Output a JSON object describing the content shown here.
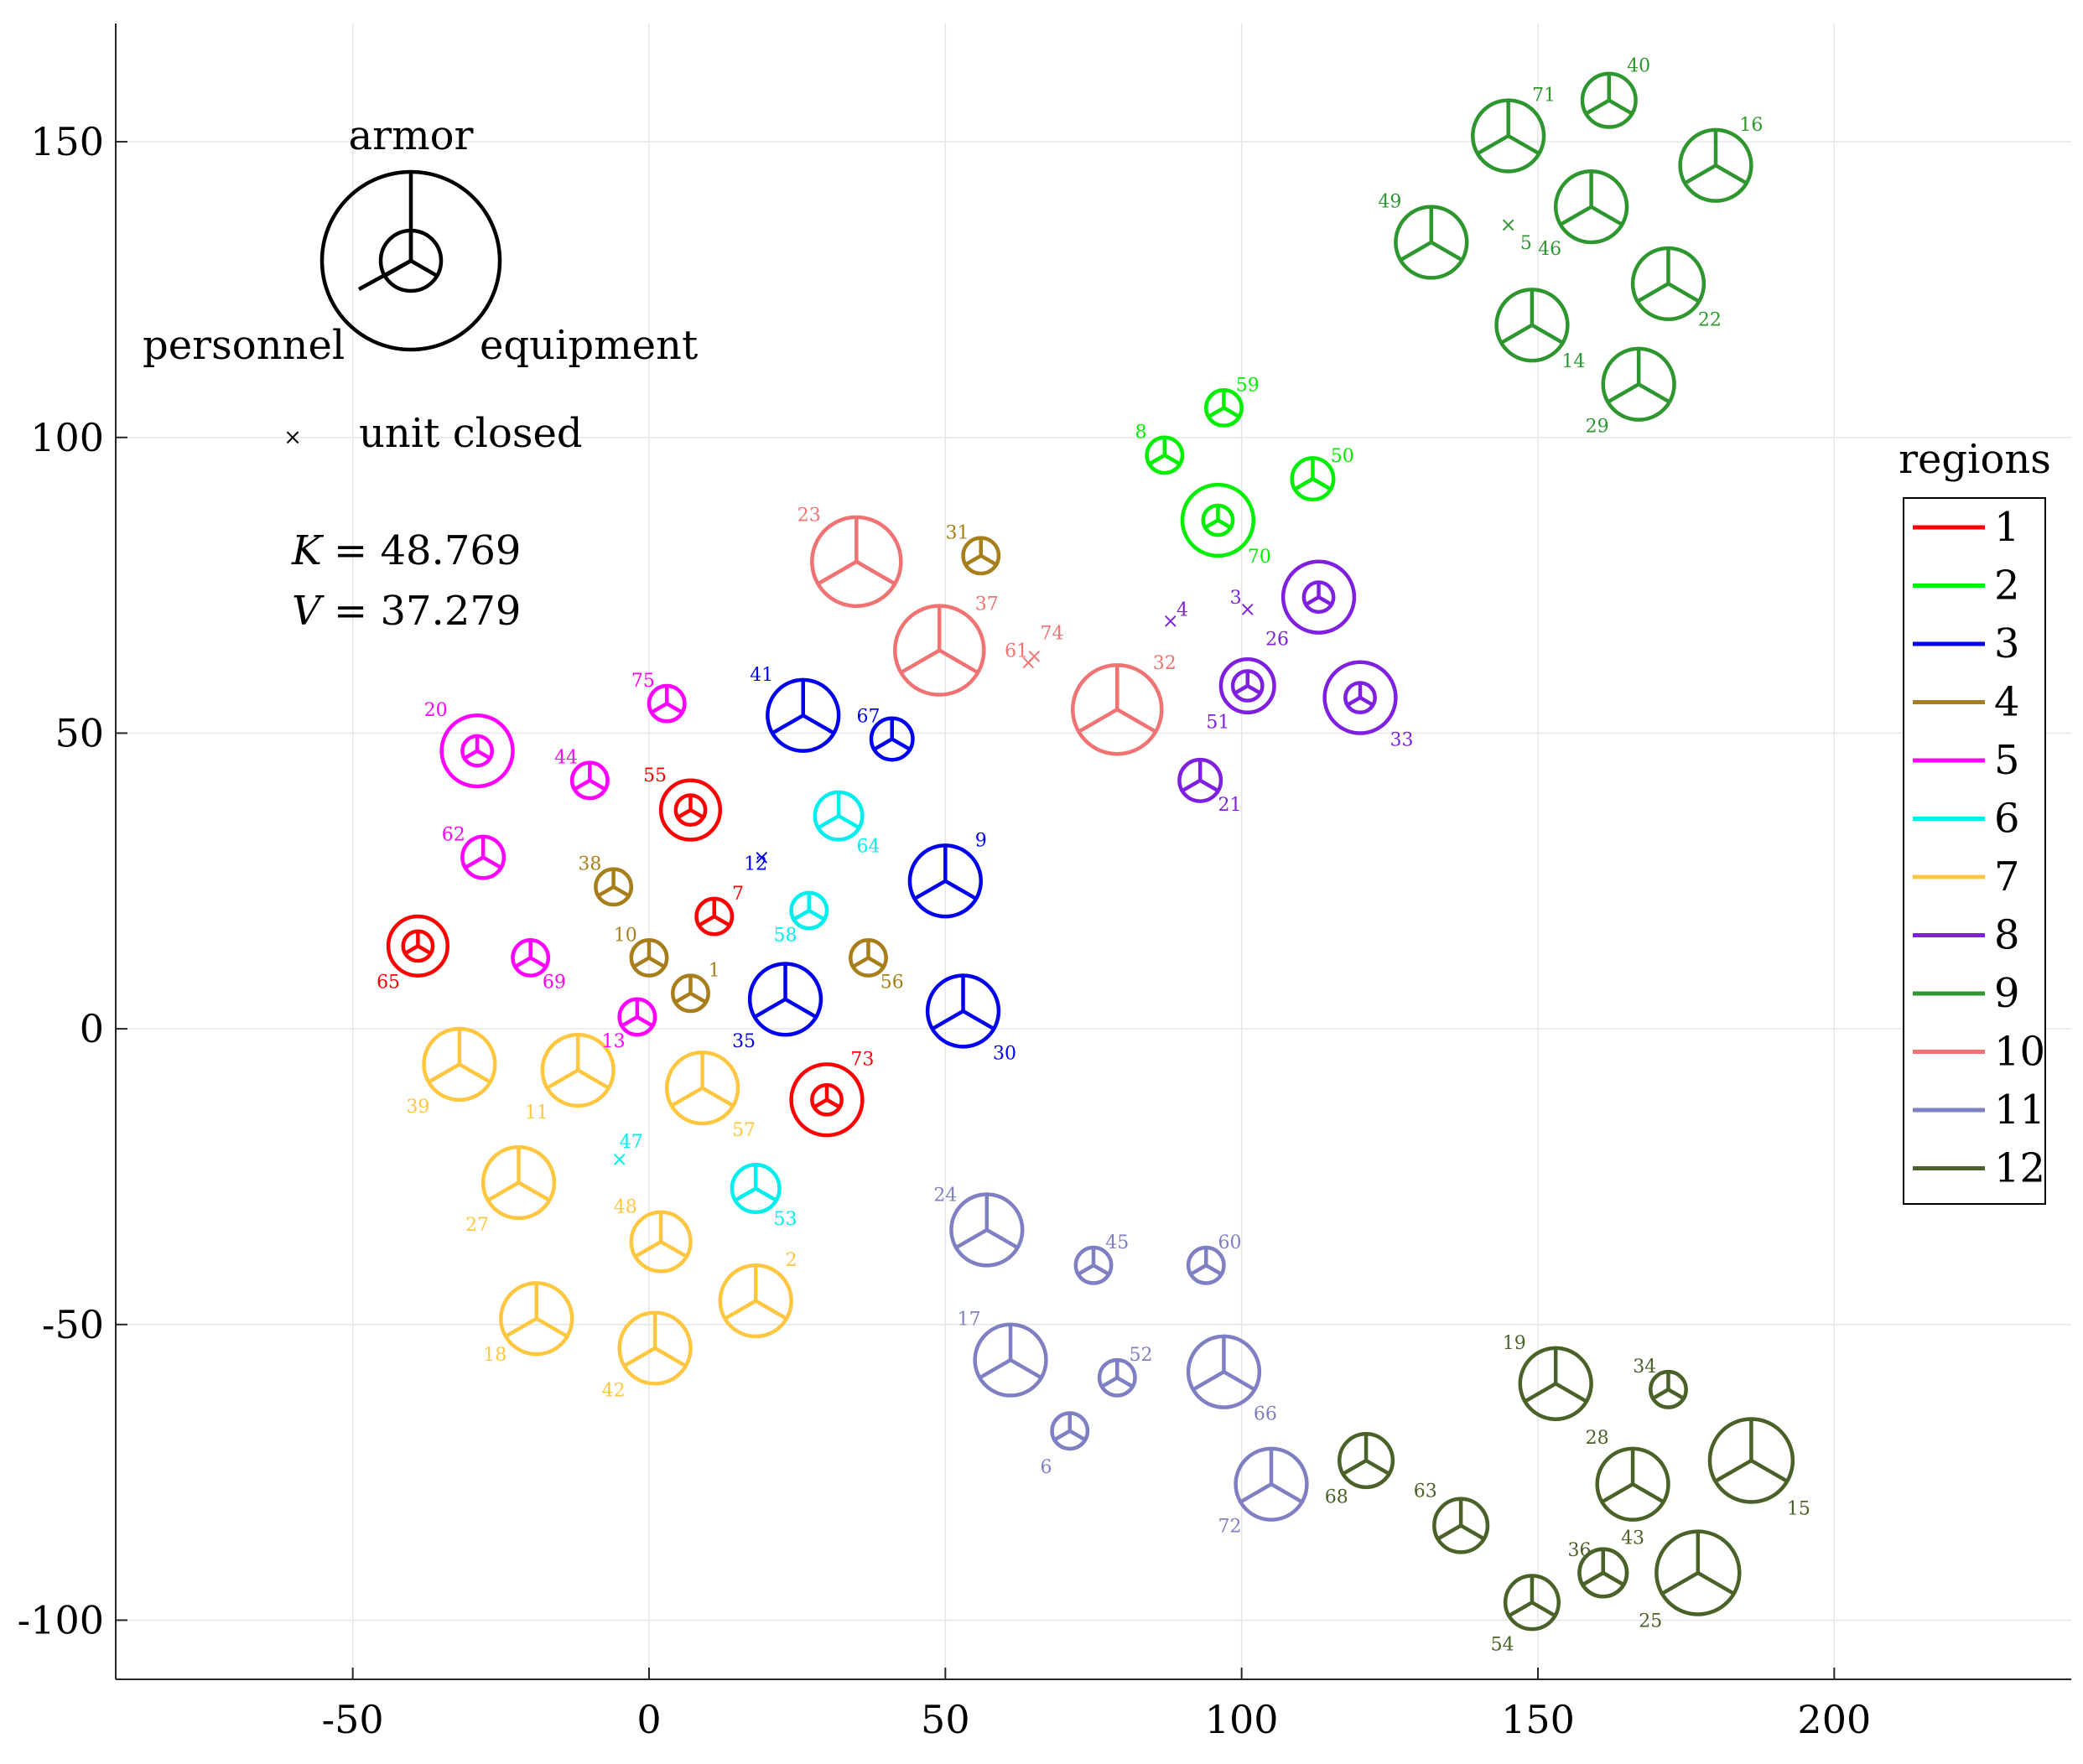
{
  "chart_data": {
    "type": "scatter",
    "title": "",
    "xlabel": "",
    "ylabel": "",
    "xlim": [
      -90,
      240
    ],
    "ylim": [
      -110,
      170
    ],
    "grid": true,
    "xticks": [
      -50,
      0,
      50,
      100,
      150,
      200
    ],
    "xtick_labels": [
      "-50",
      "0",
      "50",
      "100",
      "150",
      "200"
    ],
    "yticks": [
      150,
      100,
      50,
      0,
      -50,
      -100
    ],
    "ytick_labels": [
      "150",
      "100",
      "50",
      "0",
      "-50",
      "-100"
    ],
    "legend": {
      "title": "regions",
      "placement": "right",
      "entries": [
        "1",
        "2",
        "3",
        "4",
        "5",
        "6",
        "7",
        "8",
        "9",
        "10",
        "11",
        "12"
      ]
    },
    "region_colors": {
      "1": "#ff0000",
      "2": "#00ee00",
      "3": "#0000ee",
      "4": "#a87e1a",
      "5": "#ff00ff",
      "6": "#00eeee",
      "7": "#ffc640",
      "8": "#7f1fe0",
      "9": "#2e962e",
      "10": "#f07272",
      "11": "#7f7fc4",
      "12": "#4a6128"
    },
    "key": {
      "armor_label": "armor",
      "personnel_label": "personnel",
      "equipment_label": "equipment",
      "closed_marker": "×",
      "closed_label": "unit closed",
      "k_label": "K",
      "k_value": "= 48.769",
      "v_label": "V",
      "v_value": "= 37.279"
    },
    "units": [
      {
        "id": "1",
        "region": 4,
        "x": 7,
        "y": 6,
        "outer": 3,
        "inner": 0,
        "closed": false,
        "lx": 11,
        "ly": 10
      },
      {
        "id": "2",
        "region": 7,
        "x": 18,
        "y": -46,
        "outer": 6,
        "inner": 0,
        "closed": false,
        "lx": 24,
        "ly": -39
      },
      {
        "id": "3",
        "region": 8,
        "x": 101,
        "y": 71,
        "outer": 0,
        "inner": 0,
        "closed": true,
        "lx": 99,
        "ly": 73
      },
      {
        "id": "4",
        "region": 8,
        "x": 88,
        "y": 69,
        "outer": 0,
        "inner": 0,
        "closed": true,
        "lx": 90,
        "ly": 71
      },
      {
        "id": "5",
        "region": 9,
        "x": 145,
        "y": 136,
        "outer": 0,
        "inner": 0,
        "closed": true,
        "lx": 148,
        "ly": 133
      },
      {
        "id": "6",
        "region": 11,
        "x": 71,
        "y": -68,
        "outer": 3,
        "inner": 0,
        "closed": false,
        "lx": 67,
        "ly": -74
      },
      {
        "id": "7",
        "region": 1,
        "x": 11,
        "y": 19,
        "outer": 3,
        "inner": 0,
        "closed": false,
        "lx": 15,
        "ly": 23
      },
      {
        "id": "8",
        "region": 2,
        "x": 87,
        "y": 97,
        "outer": 3,
        "inner": 0,
        "closed": false,
        "lx": 83,
        "ly": 101
      },
      {
        "id": "9",
        "region": 3,
        "x": 50,
        "y": 25,
        "outer": 6,
        "inner": 0,
        "closed": false,
        "lx": 56,
        "ly": 32
      },
      {
        "id": "10",
        "region": 4,
        "x": 0,
        "y": 12,
        "outer": 3,
        "inner": 0,
        "closed": false,
        "lx": -4,
        "ly": 16
      },
      {
        "id": "11",
        "region": 7,
        "x": -12,
        "y": -7,
        "outer": 6,
        "inner": 0,
        "closed": false,
        "lx": -19,
        "ly": -14
      },
      {
        "id": "12",
        "region": 3,
        "x": 19,
        "y": 29,
        "outer": 0,
        "inner": 0,
        "closed": true,
        "lx": 18,
        "ly": 28
      },
      {
        "id": "13",
        "region": 5,
        "x": -2,
        "y": 2,
        "outer": 3,
        "inner": 0,
        "closed": false,
        "lx": -6,
        "ly": -2
      },
      {
        "id": "14",
        "region": 9,
        "x": 149,
        "y": 119,
        "outer": 6,
        "inner": 0,
        "closed": false,
        "lx": 156,
        "ly": 113
      },
      {
        "id": "15",
        "region": 12,
        "x": 186,
        "y": -73,
        "outer": 7,
        "inner": 0,
        "closed": false,
        "lx": 194,
        "ly": -81
      },
      {
        "id": "16",
        "region": 9,
        "x": 180,
        "y": 146,
        "outer": 6,
        "inner": 0,
        "closed": false,
        "lx": 186,
        "ly": 153
      },
      {
        "id": "17",
        "region": 11,
        "x": 61,
        "y": -56,
        "outer": 6,
        "inner": 0,
        "closed": false,
        "lx": 54,
        "ly": -49
      },
      {
        "id": "18",
        "region": 7,
        "x": -19,
        "y": -49,
        "outer": 6,
        "inner": 0,
        "closed": false,
        "lx": -26,
        "ly": -55
      },
      {
        "id": "19",
        "region": 12,
        "x": 153,
        "y": -60,
        "outer": 6,
        "inner": 0,
        "closed": false,
        "lx": 146,
        "ly": -53
      },
      {
        "id": "20",
        "region": 5,
        "x": -29,
        "y": 47,
        "outer": 6,
        "inner": 2.5,
        "closed": false,
        "lx": -36,
        "ly": 54
      },
      {
        "id": "21",
        "region": 8,
        "x": 93,
        "y": 42,
        "outer": 3.5,
        "inner": 0,
        "closed": false,
        "lx": 98,
        "ly": 38
      },
      {
        "id": "22",
        "region": 9,
        "x": 172,
        "y": 126,
        "outer": 6,
        "inner": 0,
        "closed": false,
        "lx": 179,
        "ly": 120
      },
      {
        "id": "23",
        "region": 10,
        "x": 35,
        "y": 79,
        "outer": 7.5,
        "inner": 0,
        "closed": false,
        "lx": 27,
        "ly": 87
      },
      {
        "id": "24",
        "region": 11,
        "x": 57,
        "y": -34,
        "outer": 6,
        "inner": 0,
        "closed": false,
        "lx": 50,
        "ly": -28
      },
      {
        "id": "25",
        "region": 12,
        "x": 177,
        "y": -92,
        "outer": 7,
        "inner": 0,
        "closed": false,
        "lx": 169,
        "ly": -100
      },
      {
        "id": "26",
        "region": 8,
        "x": 113,
        "y": 73,
        "outer": 6,
        "inner": 2.5,
        "closed": false,
        "lx": 106,
        "ly": 66
      },
      {
        "id": "27",
        "region": 7,
        "x": -22,
        "y": -26,
        "outer": 6,
        "inner": 0,
        "closed": false,
        "lx": -29,
        "ly": -33
      },
      {
        "id": "28",
        "region": 12,
        "x": 166,
        "y": -77,
        "outer": 6,
        "inner": 0,
        "closed": false,
        "lx": 160,
        "ly": -69
      },
      {
        "id": "29",
        "region": 9,
        "x": 167,
        "y": 109,
        "outer": 6,
        "inner": 0,
        "closed": false,
        "lx": 160,
        "ly": 102
      },
      {
        "id": "30",
        "region": 3,
        "x": 53,
        "y": 3,
        "outer": 6,
        "inner": 0,
        "closed": false,
        "lx": 60,
        "ly": -4
      },
      {
        "id": "31",
        "region": 4,
        "x": 56,
        "y": 80,
        "outer": 3,
        "inner": 0,
        "closed": false,
        "lx": 52,
        "ly": 84
      },
      {
        "id": "32",
        "region": 10,
        "x": 79,
        "y": 54,
        "outer": 7.5,
        "inner": 0,
        "closed": false,
        "lx": 87,
        "ly": 62
      },
      {
        "id": "33",
        "region": 8,
        "x": 120,
        "y": 56,
        "outer": 6,
        "inner": 2.5,
        "closed": false,
        "lx": 127,
        "ly": 49
      },
      {
        "id": "34",
        "region": 12,
        "x": 172,
        "y": -61,
        "outer": 3,
        "inner": 0,
        "closed": false,
        "lx": 168,
        "ly": -57
      },
      {
        "id": "35",
        "region": 3,
        "x": 23,
        "y": 5,
        "outer": 6,
        "inner": 0,
        "closed": false,
        "lx": 16,
        "ly": -2
      },
      {
        "id": "36",
        "region": 12,
        "x": 161,
        "y": -92,
        "outer": 4,
        "inner": 0,
        "closed": false,
        "lx": 157,
        "ly": -88
      },
      {
        "id": "37",
        "region": 10,
        "x": 49,
        "y": 64,
        "outer": 7.5,
        "inner": 0,
        "closed": false,
        "lx": 57,
        "ly": 72
      },
      {
        "id": "38",
        "region": 4,
        "x": -6,
        "y": 24,
        "outer": 3,
        "inner": 0,
        "closed": false,
        "lx": -10,
        "ly": 28
      },
      {
        "id": "39",
        "region": 7,
        "x": -32,
        "y": -6,
        "outer": 6,
        "inner": 0,
        "closed": false,
        "lx": -39,
        "ly": -13
      },
      {
        "id": "40",
        "region": 9,
        "x": 162,
        "y": 157,
        "outer": 4.5,
        "inner": 0,
        "closed": false,
        "lx": 167,
        "ly": 163
      },
      {
        "id": "41",
        "region": 3,
        "x": 26,
        "y": 53,
        "outer": 6,
        "inner": 0,
        "closed": false,
        "lx": 19,
        "ly": 60
      },
      {
        "id": "42",
        "region": 7,
        "x": 1,
        "y": -54,
        "outer": 6,
        "inner": 0,
        "closed": false,
        "lx": -6,
        "ly": -61
      },
      {
        "id": "43",
        "region": 12,
        "x": 161,
        "y": -92,
        "outer": 4,
        "inner": 0,
        "closed": false,
        "lx": 166,
        "ly": -86
      },
      {
        "id": "44",
        "region": 5,
        "x": -10,
        "y": 42,
        "outer": 3,
        "inner": 0,
        "closed": false,
        "lx": -14,
        "ly": 46
      },
      {
        "id": "45",
        "region": 11,
        "x": 75,
        "y": -40,
        "outer": 3,
        "inner": 0,
        "closed": false,
        "lx": 79,
        "ly": -36
      },
      {
        "id": "46",
        "region": 9,
        "x": 159,
        "y": 139,
        "outer": 6,
        "inner": 0,
        "closed": false,
        "lx": 152,
        "ly": 132
      },
      {
        "id": "47",
        "region": 6,
        "x": -5,
        "y": -22,
        "outer": 0,
        "inner": 0,
        "closed": true,
        "lx": -3,
        "ly": -19
      },
      {
        "id": "48",
        "region": 7,
        "x": 2,
        "y": -36,
        "outer": 5,
        "inner": 0,
        "closed": false,
        "lx": -4,
        "ly": -30
      },
      {
        "id": "49",
        "region": 9,
        "x": 132,
        "y": 133,
        "outer": 6,
        "inner": 0,
        "closed": false,
        "lx": 125,
        "ly": 140
      },
      {
        "id": "50",
        "region": 2,
        "x": 112,
        "y": 93,
        "outer": 3.5,
        "inner": 0,
        "closed": false,
        "lx": 117,
        "ly": 97
      },
      {
        "id": "51",
        "region": 8,
        "x": 101,
        "y": 58,
        "outer": 4.5,
        "inner": 2.5,
        "closed": false,
        "lx": 96,
        "ly": 52
      },
      {
        "id": "52",
        "region": 11,
        "x": 79,
        "y": -59,
        "outer": 3,
        "inner": 0,
        "closed": false,
        "lx": 83,
        "ly": -55
      },
      {
        "id": "53",
        "region": 6,
        "x": 18,
        "y": -27,
        "outer": 4,
        "inner": 0,
        "closed": false,
        "lx": 23,
        "ly": -32
      },
      {
        "id": "54",
        "region": 12,
        "x": 149,
        "y": -97,
        "outer": 4.5,
        "inner": 0,
        "closed": false,
        "lx": 144,
        "ly": -104
      },
      {
        "id": "55",
        "region": 1,
        "x": 7,
        "y": 37,
        "outer": 5,
        "inner": 2.5,
        "closed": false,
        "lx": 1,
        "ly": 43
      },
      {
        "id": "56",
        "region": 4,
        "x": 37,
        "y": 12,
        "outer": 3,
        "inner": 0,
        "closed": false,
        "lx": 41,
        "ly": 8
      },
      {
        "id": "57",
        "region": 7,
        "x": 9,
        "y": -10,
        "outer": 6,
        "inner": 0,
        "closed": false,
        "lx": 16,
        "ly": -17
      },
      {
        "id": "58",
        "region": 6,
        "x": 27,
        "y": 20,
        "outer": 3,
        "inner": 0,
        "closed": false,
        "lx": 23,
        "ly": 16
      },
      {
        "id": "59",
        "region": 2,
        "x": 97,
        "y": 105,
        "outer": 3,
        "inner": 0,
        "closed": false,
        "lx": 101,
        "ly": 109
      },
      {
        "id": "60",
        "region": 11,
        "x": 94,
        "y": -40,
        "outer": 3,
        "inner": 0,
        "closed": false,
        "lx": 98,
        "ly": -36
      },
      {
        "id": "61",
        "region": 10,
        "x": 64,
        "y": 62,
        "outer": 0,
        "inner": 0,
        "closed": true,
        "lx": 62,
        "ly": 64
      },
      {
        "id": "62",
        "region": 5,
        "x": -28,
        "y": 29,
        "outer": 3.5,
        "inner": 0,
        "closed": false,
        "lx": -33,
        "ly": 33
      },
      {
        "id": "63",
        "region": 12,
        "x": 137,
        "y": -84,
        "outer": 4.5,
        "inner": 0,
        "closed": false,
        "lx": 131,
        "ly": -78
      },
      {
        "id": "64",
        "region": 6,
        "x": 32,
        "y": 36,
        "outer": 4,
        "inner": 0,
        "closed": false,
        "lx": 37,
        "ly": 31
      },
      {
        "id": "65",
        "region": 1,
        "x": -39,
        "y": 14,
        "outer": 5,
        "inner": 2.5,
        "closed": false,
        "lx": -44,
        "ly": 8
      },
      {
        "id": "66",
        "region": 11,
        "x": 97,
        "y": -58,
        "outer": 6,
        "inner": 0,
        "closed": false,
        "lx": 104,
        "ly": -65
      },
      {
        "id": "67",
        "region": 3,
        "x": 41,
        "y": 49,
        "outer": 3.5,
        "inner": 0,
        "closed": false,
        "lx": 37,
        "ly": 53
      },
      {
        "id": "68",
        "region": 12,
        "x": 121,
        "y": -73,
        "outer": 4.5,
        "inner": 0,
        "closed": false,
        "lx": 116,
        "ly": -79
      },
      {
        "id": "69",
        "region": 5,
        "x": -20,
        "y": 12,
        "outer": 3,
        "inner": 0,
        "closed": false,
        "lx": -16,
        "ly": 8
      },
      {
        "id": "70",
        "region": 2,
        "x": 96,
        "y": 86,
        "outer": 6,
        "inner": 2.5,
        "closed": false,
        "lx": 103,
        "ly": 80
      },
      {
        "id": "71",
        "region": 9,
        "x": 145,
        "y": 151,
        "outer": 6,
        "inner": 0,
        "closed": false,
        "lx": 151,
        "ly": 158
      },
      {
        "id": "72",
        "region": 11,
        "x": 105,
        "y": -77,
        "outer": 6,
        "inner": 0,
        "closed": false,
        "lx": 98,
        "ly": -84
      },
      {
        "id": "73",
        "region": 1,
        "x": 30,
        "y": -12,
        "outer": 6,
        "inner": 2.5,
        "closed": false,
        "lx": 36,
        "ly": -5
      },
      {
        "id": "74",
        "region": 10,
        "x": 65,
        "y": 63,
        "outer": 0,
        "inner": 0,
        "closed": true,
        "lx": 68,
        "ly": 67
      },
      {
        "id": "75",
        "region": 5,
        "x": 3,
        "y": 55,
        "outer": 3,
        "inner": 0,
        "closed": false,
        "lx": -1,
        "ly": 59
      }
    ]
  }
}
